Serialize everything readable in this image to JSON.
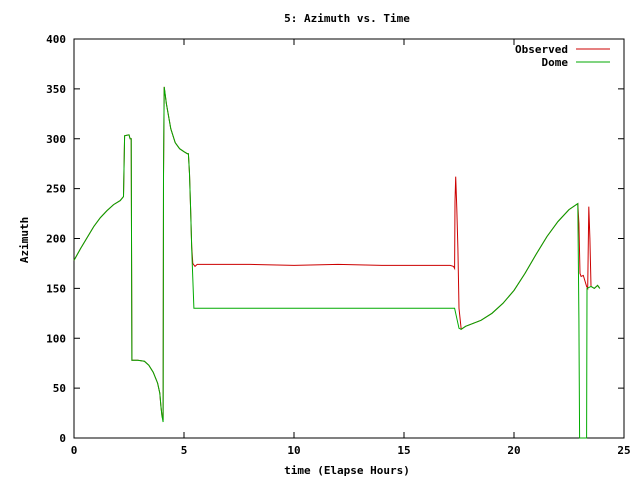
{
  "chart_data": {
    "type": "line",
    "title": "5: Azimuth vs. Time",
    "xlabel": "time (Elapse Hours)",
    "ylabel": "Azimuth",
    "xlim": [
      0,
      25
    ],
    "ylim": [
      0,
      400
    ],
    "xticks": [
      "0",
      "5",
      "10",
      "15",
      "20",
      "25"
    ],
    "yticks": [
      "0",
      "50",
      "100",
      "150",
      "200",
      "250",
      "300",
      "350",
      "400"
    ],
    "grid": false,
    "legend_position": "top-right",
    "series": [
      {
        "name": "Observed",
        "color": "#cc0000",
        "points": [
          [
            0,
            178
          ],
          [
            0.3,
            190
          ],
          [
            0.6,
            201
          ],
          [
            0.9,
            212
          ],
          [
            1.2,
            221
          ],
          [
            1.5,
            228
          ],
          [
            1.8,
            234
          ],
          [
            2.1,
            238
          ],
          [
            2.25,
            242
          ],
          [
            2.3,
            303
          ],
          [
            2.5,
            304
          ],
          [
            2.55,
            300
          ],
          [
            2.6,
            300
          ],
          [
            2.63,
            78
          ],
          [
            2.9,
            78
          ],
          [
            3.2,
            77
          ],
          [
            3.4,
            73
          ],
          [
            3.6,
            66
          ],
          [
            3.8,
            55
          ],
          [
            3.9,
            45
          ],
          [
            3.95,
            32
          ],
          [
            4.0,
            22
          ],
          [
            4.05,
            18
          ],
          [
            4.07,
            260
          ],
          [
            4.1,
            352
          ],
          [
            4.2,
            335
          ],
          [
            4.4,
            310
          ],
          [
            4.6,
            296
          ],
          [
            4.8,
            290
          ],
          [
            5.0,
            287
          ],
          [
            5.15,
            285
          ],
          [
            5.2,
            285
          ],
          [
            5.25,
            265
          ],
          [
            5.3,
            230
          ],
          [
            5.35,
            192
          ],
          [
            5.4,
            175
          ],
          [
            5.5,
            172
          ],
          [
            5.6,
            174
          ],
          [
            8,
            174
          ],
          [
            10,
            173
          ],
          [
            12,
            174
          ],
          [
            14,
            173
          ],
          [
            16,
            173
          ],
          [
            17.1,
            173
          ],
          [
            17.25,
            172
          ],
          [
            17.3,
            170
          ],
          [
            17.32,
            237
          ],
          [
            17.35,
            262
          ],
          [
            17.4,
            230
          ],
          [
            17.45,
            190
          ],
          [
            17.5,
            130
          ],
          [
            17.6,
            109
          ],
          [
            17.8,
            112
          ],
          [
            18.5,
            118
          ],
          [
            19.0,
            125
          ],
          [
            19.5,
            135
          ],
          [
            20.0,
            148
          ],
          [
            20.5,
            165
          ],
          [
            21.0,
            184
          ],
          [
            21.5,
            202
          ],
          [
            22.0,
            217
          ],
          [
            22.5,
            229
          ],
          [
            22.9,
            235
          ],
          [
            22.95,
            215
          ],
          [
            23.0,
            165
          ],
          [
            23.05,
            162
          ],
          [
            23.15,
            163
          ],
          [
            23.3,
            152
          ],
          [
            23.35,
            150
          ],
          [
            23.4,
            232
          ],
          [
            23.45,
            200
          ],
          [
            23.5,
            152
          ],
          [
            23.65,
            150
          ],
          [
            23.8,
            153
          ],
          [
            23.9,
            150
          ]
        ]
      },
      {
        "name": "Dome",
        "color": "#00aa00",
        "points": [
          [
            0,
            178
          ],
          [
            0.3,
            190
          ],
          [
            0.6,
            201
          ],
          [
            0.9,
            212
          ],
          [
            1.2,
            221
          ],
          [
            1.5,
            228
          ],
          [
            1.8,
            234
          ],
          [
            2.1,
            238
          ],
          [
            2.25,
            242
          ],
          [
            2.3,
            303
          ],
          [
            2.5,
            304
          ],
          [
            2.55,
            300
          ],
          [
            2.6,
            300
          ],
          [
            2.63,
            78
          ],
          [
            2.9,
            78
          ],
          [
            3.2,
            77
          ],
          [
            3.4,
            73
          ],
          [
            3.6,
            66
          ],
          [
            3.8,
            55
          ],
          [
            3.9,
            45
          ],
          [
            3.95,
            32
          ],
          [
            4.0,
            22
          ],
          [
            4.05,
            16
          ],
          [
            4.07,
            265
          ],
          [
            4.1,
            352
          ],
          [
            4.2,
            335
          ],
          [
            4.4,
            310
          ],
          [
            4.6,
            296
          ],
          [
            4.8,
            290
          ],
          [
            5.0,
            287
          ],
          [
            5.15,
            285
          ],
          [
            5.2,
            285
          ],
          [
            5.25,
            265
          ],
          [
            5.3,
            230
          ],
          [
            5.35,
            190
          ],
          [
            5.4,
            160
          ],
          [
            5.45,
            130
          ],
          [
            8,
            130
          ],
          [
            10,
            130
          ],
          [
            12,
            130
          ],
          [
            14,
            130
          ],
          [
            16,
            130
          ],
          [
            17.3,
            130
          ],
          [
            17.35,
            125
          ],
          [
            17.45,
            115
          ],
          [
            17.5,
            110
          ],
          [
            17.6,
            109
          ],
          [
            17.8,
            112
          ],
          [
            18.5,
            118
          ],
          [
            19.0,
            125
          ],
          [
            19.5,
            135
          ],
          [
            20.0,
            148
          ],
          [
            20.5,
            165
          ],
          [
            21.0,
            184
          ],
          [
            21.5,
            202
          ],
          [
            22.0,
            217
          ],
          [
            22.5,
            229
          ],
          [
            22.9,
            235
          ],
          [
            22.95,
            120
          ],
          [
            22.98,
            0
          ],
          [
            23.3,
            0
          ],
          [
            23.32,
            150
          ],
          [
            23.5,
            152
          ],
          [
            23.65,
            150
          ],
          [
            23.8,
            153
          ],
          [
            23.9,
            150
          ]
        ]
      }
    ]
  }
}
